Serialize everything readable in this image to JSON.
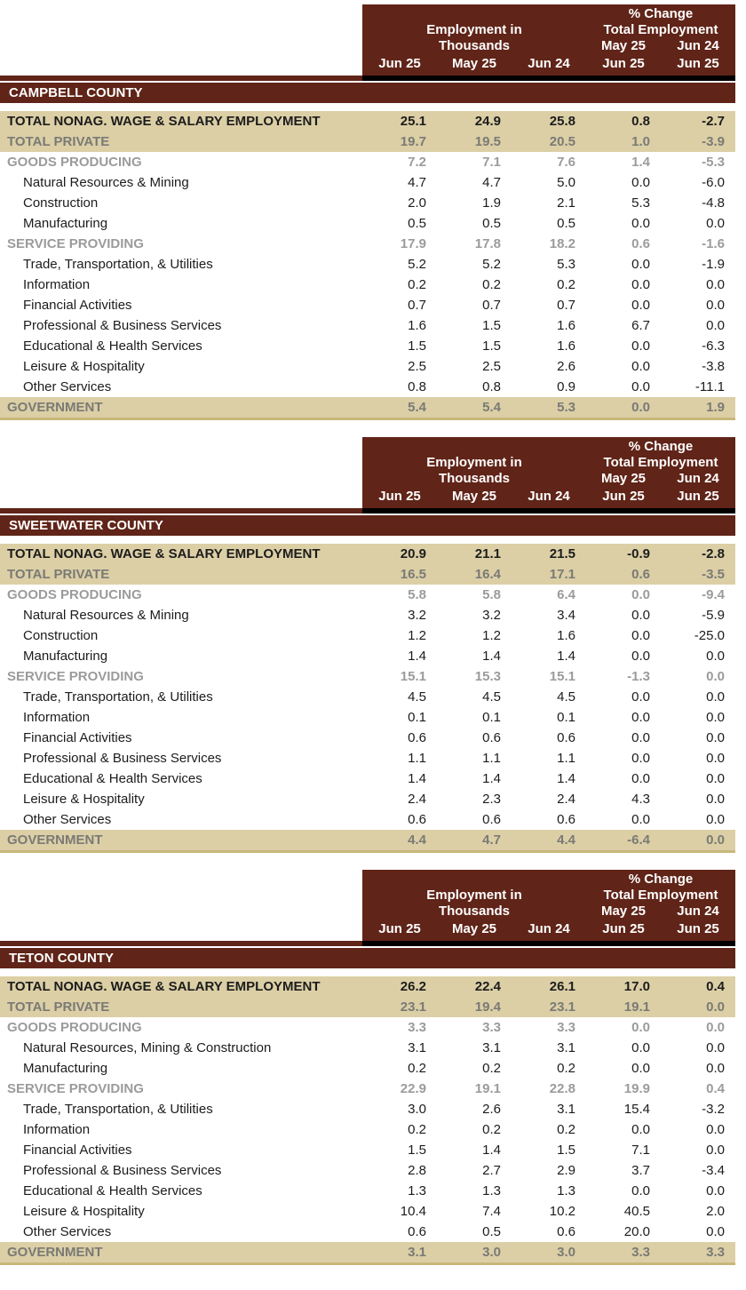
{
  "palette": {
    "maroon": "#602418",
    "tan": "#dccfa6",
    "khaki_border": "#c8b77b",
    "gray_strong": "#7a7a75",
    "gray_light": "#9b9b9b",
    "ink": "#1c1c1c",
    "white": "#ffffff"
  },
  "header": {
    "pct_change": "% Change",
    "employment_in": "Employment in",
    "thousands": "Thousands",
    "total_employment": "Total Employment",
    "change_col1_top": "May 25",
    "change_col2_top": "Jun 24",
    "cols": [
      "Jun 25",
      "May 25",
      "Jun 24",
      "Jun 25",
      "Jun 25"
    ]
  },
  "tables": [
    {
      "county": "CAMPBELL COUNTY",
      "rows": [
        {
          "label": "TOTAL NONAG. WAGE & SALARY EMPLOYMENT",
          "style": "total",
          "values": [
            "25.1",
            "24.9",
            "25.8",
            "0.8",
            "-2.7"
          ]
        },
        {
          "label": "TOTAL PRIVATE",
          "style": "total-gray",
          "values": [
            "19.7",
            "19.5",
            "20.5",
            "1.0",
            "-3.9"
          ]
        },
        {
          "label": "GOODS PRODUCING",
          "style": "section",
          "values": [
            "7.2",
            "7.1",
            "7.6",
            "1.4",
            "-5.3"
          ]
        },
        {
          "label": "Natural Resources & Mining",
          "style": "detail",
          "values": [
            "4.7",
            "4.7",
            "5.0",
            "0.0",
            "-6.0"
          ]
        },
        {
          "label": "Construction",
          "style": "detail",
          "values": [
            "2.0",
            "1.9",
            "2.1",
            "5.3",
            "-4.8"
          ]
        },
        {
          "label": "Manufacturing",
          "style": "detail",
          "values": [
            "0.5",
            "0.5",
            "0.5",
            "0.0",
            "0.0"
          ]
        },
        {
          "label": "SERVICE PROVIDING",
          "style": "section",
          "values": [
            "17.9",
            "17.8",
            "18.2",
            "0.6",
            "-1.6"
          ]
        },
        {
          "label": "Trade, Transportation, & Utilities",
          "style": "detail",
          "values": [
            "5.2",
            "5.2",
            "5.3",
            "0.0",
            "-1.9"
          ]
        },
        {
          "label": "Information",
          "style": "detail",
          "values": [
            "0.2",
            "0.2",
            "0.2",
            "0.0",
            "0.0"
          ]
        },
        {
          "label": "Financial Activities",
          "style": "detail",
          "values": [
            "0.7",
            "0.7",
            "0.7",
            "0.0",
            "0.0"
          ]
        },
        {
          "label": "Professional & Business Services",
          "style": "detail",
          "values": [
            "1.6",
            "1.5",
            "1.6",
            "6.7",
            "0.0"
          ]
        },
        {
          "label": "Educational & Health Services",
          "style": "detail",
          "values": [
            "1.5",
            "1.5",
            "1.6",
            "0.0",
            "-6.3"
          ]
        },
        {
          "label": "Leisure & Hospitality",
          "style": "detail",
          "values": [
            "2.5",
            "2.5",
            "2.6",
            "0.0",
            "-3.8"
          ]
        },
        {
          "label": "Other Services",
          "style": "detail",
          "values": [
            "0.8",
            "0.8",
            "0.9",
            "0.0",
            "-11.1"
          ]
        },
        {
          "label": "GOVERNMENT",
          "style": "government",
          "values": [
            "5.4",
            "5.4",
            "5.3",
            "0.0",
            "1.9"
          ]
        }
      ]
    },
    {
      "county": "SWEETWATER COUNTY",
      "rows": [
        {
          "label": "TOTAL NONAG. WAGE & SALARY EMPLOYMENT",
          "style": "total",
          "values": [
            "20.9",
            "21.1",
            "21.5",
            "-0.9",
            "-2.8"
          ]
        },
        {
          "label": "TOTAL PRIVATE",
          "style": "total-gray",
          "values": [
            "16.5",
            "16.4",
            "17.1",
            "0.6",
            "-3.5"
          ]
        },
        {
          "label": "GOODS PRODUCING",
          "style": "section",
          "values": [
            "5.8",
            "5.8",
            "6.4",
            "0.0",
            "-9.4"
          ]
        },
        {
          "label": "Natural Resources & Mining",
          "style": "detail",
          "values": [
            "3.2",
            "3.2",
            "3.4",
            "0.0",
            "-5.9"
          ]
        },
        {
          "label": "Construction",
          "style": "detail",
          "values": [
            "1.2",
            "1.2",
            "1.6",
            "0.0",
            "-25.0"
          ]
        },
        {
          "label": "Manufacturing",
          "style": "detail",
          "values": [
            "1.4",
            "1.4",
            "1.4",
            "0.0",
            "0.0"
          ]
        },
        {
          "label": "SERVICE PROVIDING",
          "style": "section",
          "values": [
            "15.1",
            "15.3",
            "15.1",
            "-1.3",
            "0.0"
          ]
        },
        {
          "label": "Trade, Transportation, & Utilities",
          "style": "detail",
          "values": [
            "4.5",
            "4.5",
            "4.5",
            "0.0",
            "0.0"
          ]
        },
        {
          "label": "Information",
          "style": "detail",
          "values": [
            "0.1",
            "0.1",
            "0.1",
            "0.0",
            "0.0"
          ]
        },
        {
          "label": "Financial Activities",
          "style": "detail",
          "values": [
            "0.6",
            "0.6",
            "0.6",
            "0.0",
            "0.0"
          ]
        },
        {
          "label": "Professional & Business Services",
          "style": "detail",
          "values": [
            "1.1",
            "1.1",
            "1.1",
            "0.0",
            "0.0"
          ]
        },
        {
          "label": "Educational & Health Services",
          "style": "detail",
          "values": [
            "1.4",
            "1.4",
            "1.4",
            "0.0",
            "0.0"
          ]
        },
        {
          "label": "Leisure & Hospitality",
          "style": "detail",
          "values": [
            "2.4",
            "2.3",
            "2.4",
            "4.3",
            "0.0"
          ]
        },
        {
          "label": "Other Services",
          "style": "detail",
          "values": [
            "0.6",
            "0.6",
            "0.6",
            "0.0",
            "0.0"
          ]
        },
        {
          "label": "GOVERNMENT",
          "style": "government",
          "values": [
            "4.4",
            "4.7",
            "4.4",
            "-6.4",
            "0.0"
          ]
        }
      ]
    },
    {
      "county": "TETON COUNTY",
      "rows": [
        {
          "label": "TOTAL NONAG. WAGE & SALARY EMPLOYMENT",
          "style": "total",
          "values": [
            "26.2",
            "22.4",
            "26.1",
            "17.0",
            "0.4"
          ]
        },
        {
          "label": "TOTAL PRIVATE",
          "style": "total-gray",
          "values": [
            "23.1",
            "19.4",
            "23.1",
            "19.1",
            "0.0"
          ]
        },
        {
          "label": "GOODS PRODUCING",
          "style": "section",
          "values": [
            "3.3",
            "3.3",
            "3.3",
            "0.0",
            "0.0"
          ]
        },
        {
          "label": "Natural Resources, Mining & Construction",
          "style": "detail",
          "values": [
            "3.1",
            "3.1",
            "3.1",
            "0.0",
            "0.0"
          ]
        },
        {
          "label": "Manufacturing",
          "style": "detail",
          "values": [
            "0.2",
            "0.2",
            "0.2",
            "0.0",
            "0.0"
          ]
        },
        {
          "label": "SERVICE PROVIDING",
          "style": "section",
          "values": [
            "22.9",
            "19.1",
            "22.8",
            "19.9",
            "0.4"
          ]
        },
        {
          "label": "Trade, Transportation, & Utilities",
          "style": "detail",
          "values": [
            "3.0",
            "2.6",
            "3.1",
            "15.4",
            "-3.2"
          ]
        },
        {
          "label": "Information",
          "style": "detail",
          "values": [
            "0.2",
            "0.2",
            "0.2",
            "0.0",
            "0.0"
          ]
        },
        {
          "label": "Financial Activities",
          "style": "detail",
          "values": [
            "1.5",
            "1.4",
            "1.5",
            "7.1",
            "0.0"
          ]
        },
        {
          "label": "Professional & Business Services",
          "style": "detail",
          "values": [
            "2.8",
            "2.7",
            "2.9",
            "3.7",
            "-3.4"
          ]
        },
        {
          "label": "Educational & Health Services",
          "style": "detail",
          "values": [
            "1.3",
            "1.3",
            "1.3",
            "0.0",
            "0.0"
          ]
        },
        {
          "label": "Leisure & Hospitality",
          "style": "detail",
          "values": [
            "10.4",
            "7.4",
            "10.2",
            "40.5",
            "2.0"
          ]
        },
        {
          "label": "Other Services",
          "style": "detail",
          "values": [
            "0.6",
            "0.5",
            "0.6",
            "20.0",
            "0.0"
          ]
        },
        {
          "label": "GOVERNMENT",
          "style": "government",
          "values": [
            "3.1",
            "3.0",
            "3.0",
            "3.3",
            "3.3"
          ]
        }
      ]
    }
  ]
}
